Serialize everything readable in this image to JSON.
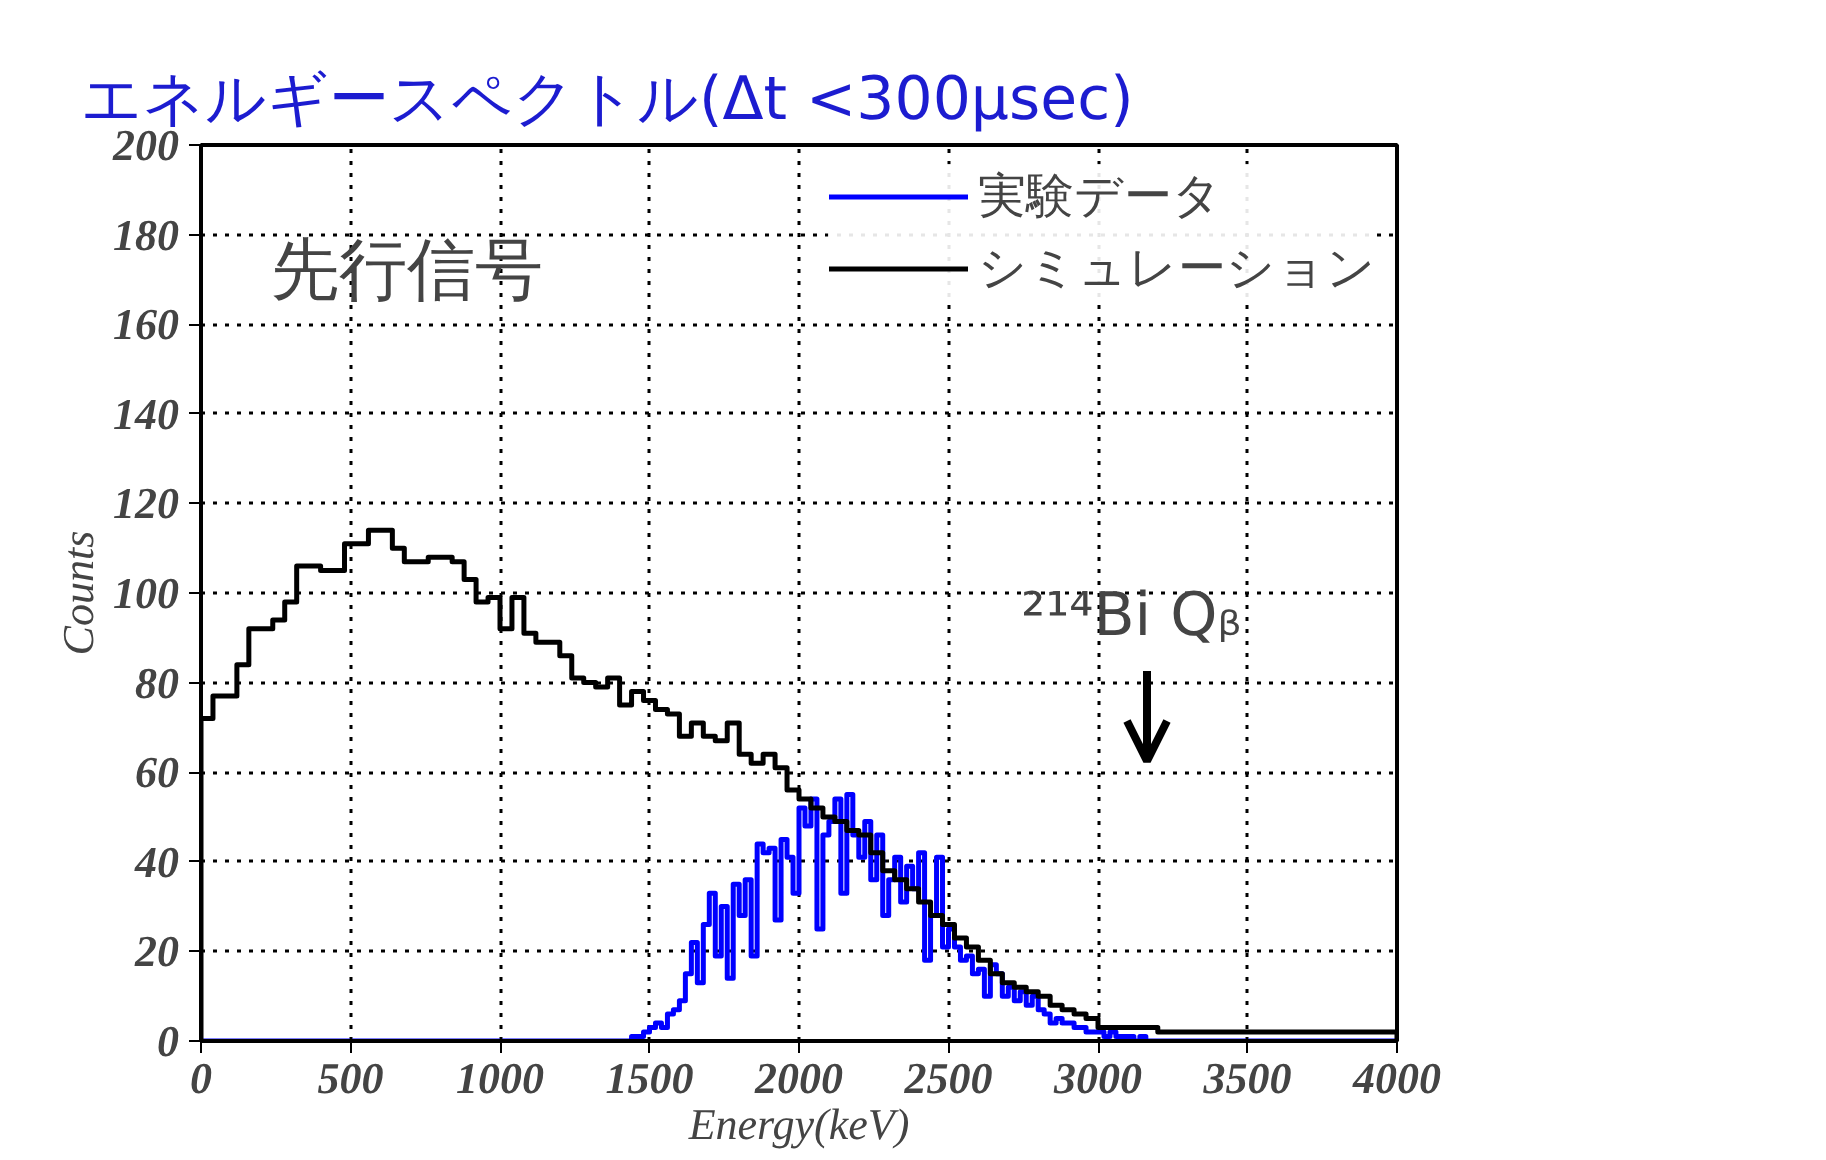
{
  "chart_data": {
    "type": "histogram",
    "title": "エネルギースペクトル(Δt <300μsec)",
    "xlabel": "Energy(keV)",
    "ylabel": "Counts",
    "bins": [
      0,
      40,
      80,
      120,
      160,
      200,
      240,
      280,
      320,
      360,
      400,
      440,
      480,
      520,
      560,
      600,
      640,
      680,
      720,
      760,
      800,
      840,
      880,
      920,
      960,
      1000,
      1040,
      1080,
      1120,
      1160,
      1200,
      1240,
      1280,
      1320,
      1360,
      1400,
      1440,
      1480,
      1520,
      1560,
      1600,
      1640,
      1680,
      1720,
      1760,
      1800,
      1840,
      1880,
      1920,
      1960,
      2000,
      2040,
      2080,
      2120,
      2160,
      2200,
      2240,
      2280,
      2320,
      2360,
      2400,
      2440,
      2480,
      2520,
      2560,
      2600,
      2640,
      2680,
      2720,
      2760,
      2800,
      2840,
      2880,
      2920,
      2960,
      3000,
      3040,
      3080,
      3120,
      3160,
      3200,
      3240,
      3280,
      3320,
      3360,
      3400,
      3440,
      3480,
      3520,
      3560,
      3600,
      3640,
      3680,
      3720,
      3760,
      3800,
      3840,
      3880,
      3920,
      3960,
      4000
    ],
    "series": [
      {
        "name": "実験データ",
        "color": "#0000ff",
        "bins": [
          0,
          1400,
          1420,
          1440,
          1460,
          1480,
          1500,
          1520,
          1540,
          1560,
          1580,
          1600,
          1620,
          1640,
          1660,
          1680,
          1700,
          1720,
          1740,
          1760,
          1780,
          1800,
          1820,
          1840,
          1860,
          1880,
          1900,
          1920,
          1940,
          1960,
          1980,
          2000,
          2020,
          2040,
          2060,
          2080,
          2100,
          2120,
          2140,
          2160,
          2180,
          2200,
          2220,
          2240,
          2260,
          2280,
          2300,
          2320,
          2340,
          2360,
          2380,
          2400,
          2420,
          2440,
          2460,
          2480,
          2500,
          2520,
          2540,
          2560,
          2580,
          2600,
          2620,
          2640,
          2660,
          2680,
          2700,
          2720,
          2740,
          2760,
          2780,
          2800,
          2820,
          2840,
          2860,
          2880,
          2900,
          2920,
          2940,
          2960,
          2980,
          3000,
          3020,
          3040,
          3060,
          3080,
          3100,
          3120,
          3140,
          3160,
          3180,
          3200,
          4000
        ],
        "values": [
          0,
          0,
          0,
          1,
          1,
          2,
          3,
          4,
          3,
          6,
          7,
          9,
          15,
          22,
          13,
          26,
          33,
          19,
          30,
          14,
          35,
          28,
          36,
          19,
          44,
          42,
          43,
          27,
          45,
          41,
          33,
          52,
          48,
          54,
          25,
          46,
          49,
          54,
          33,
          55,
          46,
          41,
          49,
          36,
          46,
          28,
          36,
          41,
          31,
          39,
          34,
          42,
          18,
          28,
          41,
          21,
          25,
          21,
          18,
          19,
          15,
          16,
          10,
          17,
          15,
          10,
          12,
          9,
          11,
          8,
          10,
          7,
          6,
          4,
          5,
          4,
          4,
          3,
          3,
          2,
          2,
          2,
          1,
          2,
          1,
          1,
          1,
          0,
          1,
          0,
          0,
          0
        ]
      },
      {
        "name": "シミュレーション",
        "color": "#000000",
        "values": [
          72,
          77,
          77,
          84,
          92,
          92,
          94,
          98,
          106,
          106,
          105,
          105,
          111,
          111,
          114,
          114,
          110,
          107,
          107,
          108,
          108,
          107,
          103,
          98,
          99,
          92,
          99,
          91,
          89,
          89,
          86,
          81,
          80,
          79,
          81,
          75,
          78,
          76,
          74,
          73,
          68,
          71,
          68,
          67,
          71,
          64,
          62,
          64,
          61,
          56,
          54,
          52,
          50,
          49,
          47,
          46,
          42,
          38,
          36,
          34,
          31,
          28,
          26,
          23,
          21,
          18,
          15,
          13,
          12,
          11,
          10,
          8,
          7,
          6,
          5,
          3,
          3,
          3,
          3,
          3,
          2,
          2,
          2,
          2,
          2,
          2,
          2,
          2,
          2,
          2,
          2,
          2,
          2,
          2,
          2,
          2,
          2,
          2,
          2,
          2
        ]
      }
    ],
    "xlim": [
      0,
      4000
    ],
    "xticks": [
      0,
      500,
      1000,
      1500,
      2000,
      2500,
      3000,
      3500,
      4000
    ],
    "ylim": [
      0,
      200
    ],
    "yticks": [
      0,
      20,
      40,
      60,
      80,
      100,
      120,
      140,
      160,
      180,
      200
    ],
    "grid": true,
    "legend": "top right",
    "annotations": [
      "先行信号",
      "²¹⁴Bi  Qᵦ"
    ]
  }
}
